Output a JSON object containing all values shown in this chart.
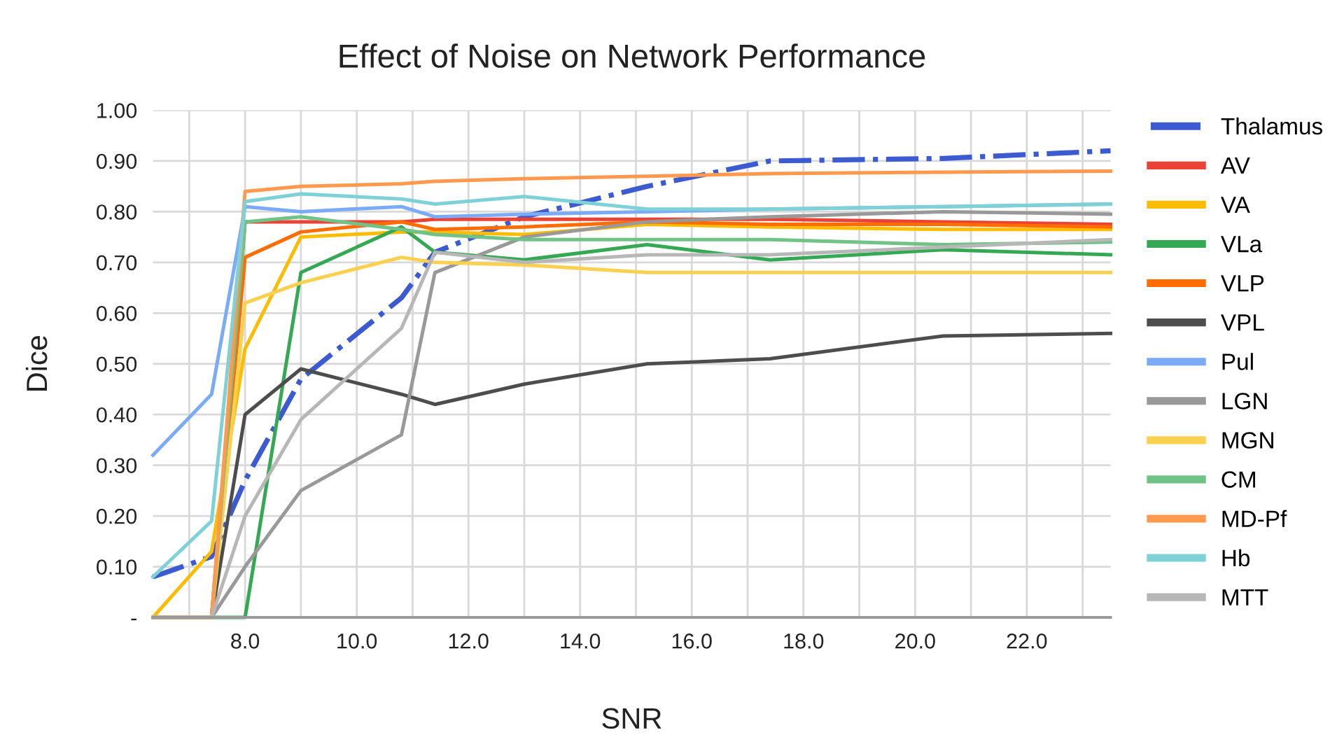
{
  "chart_data": {
    "type": "line",
    "title": "Effect of Noise on Network Performance",
    "xlabel": "SNR",
    "ylabel": "Dice",
    "x": [
      6.35,
      7.4,
      8.0,
      9.0,
      10.8,
      11.4,
      13.0,
      15.2,
      17.4,
      20.5,
      23.5
    ],
    "xlim": [
      6.35,
      23.5
    ],
    "xticks": [
      {
        "value": 7,
        "label": null
      },
      {
        "value": 8,
        "label": "8.0"
      },
      {
        "value": 9,
        "label": null
      },
      {
        "value": 10,
        "label": "10.0"
      },
      {
        "value": 11,
        "label": null
      },
      {
        "value": 12,
        "label": "12.0"
      },
      {
        "value": 13,
        "label": null
      },
      {
        "value": 14,
        "label": "14.0"
      },
      {
        "value": 15,
        "label": null
      },
      {
        "value": 16,
        "label": "16.0"
      },
      {
        "value": 17,
        "label": null
      },
      {
        "value": 18,
        "label": "18.0"
      },
      {
        "value": 19,
        "label": null
      },
      {
        "value": 20,
        "label": "20.0"
      },
      {
        "value": 21,
        "label": null
      },
      {
        "value": 22,
        "label": "22.0"
      },
      {
        "value": 23,
        "label": null
      }
    ],
    "ylim": [
      0,
      1.0
    ],
    "yticks": [
      {
        "value": 0,
        "label": "-"
      },
      {
        "value": 0.1,
        "label": "0.10"
      },
      {
        "value": 0.2,
        "label": "0.20"
      },
      {
        "value": 0.3,
        "label": "0.30"
      },
      {
        "value": 0.4,
        "label": "0.40"
      },
      {
        "value": 0.5,
        "label": "0.50"
      },
      {
        "value": 0.6,
        "label": "0.60"
      },
      {
        "value": 0.7,
        "label": "0.70"
      },
      {
        "value": 0.8,
        "label": "0.80"
      },
      {
        "value": 0.9,
        "label": "0.90"
      },
      {
        "value": 1.0,
        "label": "1.00"
      }
    ],
    "grid": true,
    "legend": "right",
    "series": [
      {
        "name": "Thalamus",
        "color": "#3c5bd0",
        "line_style": "dashdot",
        "values": [
          0.08,
          0.12,
          0.27,
          0.47,
          0.63,
          0.72,
          0.79,
          0.85,
          0.9,
          0.905,
          0.92
        ]
      },
      {
        "name": "AV",
        "color": "#ea4335",
        "values": [
          0,
          0,
          0.78,
          0.78,
          0.78,
          0.785,
          0.785,
          0.785,
          0.785,
          0.78,
          0.775
        ]
      },
      {
        "name": "VA",
        "color": "#fbbc04",
        "values": [
          0,
          0.13,
          0.53,
          0.75,
          0.76,
          0.76,
          0.755,
          0.775,
          0.77,
          0.765,
          0.765
        ]
      },
      {
        "name": "VLa",
        "color": "#34a853",
        "values": [
          0,
          0,
          0,
          0.68,
          0.77,
          0.72,
          0.705,
          0.735,
          0.705,
          0.725,
          0.715
        ]
      },
      {
        "name": "VLP",
        "color": "#ff6d01",
        "values": [
          0,
          0,
          0.71,
          0.76,
          0.78,
          0.765,
          0.77,
          0.78,
          0.775,
          0.775,
          0.77
        ]
      },
      {
        "name": "VPL",
        "color": "#4d4d4d",
        "values": [
          0,
          0,
          0.4,
          0.49,
          0.44,
          0.42,
          0.46,
          0.5,
          0.51,
          0.555,
          0.56
        ]
      },
      {
        "name": "Pul",
        "color": "#7baaf7",
        "values": [
          0.32,
          0.44,
          0.81,
          0.8,
          0.81,
          0.79,
          0.795,
          0.8,
          0.805,
          0.81,
          0.815
        ]
      },
      {
        "name": "LGN",
        "color": "#999999",
        "values": [
          0,
          0,
          0.1,
          0.25,
          0.36,
          0.68,
          0.75,
          0.78,
          0.79,
          0.8,
          0.795
        ]
      },
      {
        "name": "MGN",
        "color": "#fcd04f",
        "values": [
          0,
          0,
          0.62,
          0.66,
          0.71,
          0.7,
          0.695,
          0.68,
          0.68,
          0.68,
          0.68
        ]
      },
      {
        "name": "CM",
        "color": "#71c287",
        "values": [
          0,
          0,
          0.78,
          0.79,
          0.765,
          0.755,
          0.745,
          0.745,
          0.745,
          0.735,
          0.74
        ]
      },
      {
        "name": "MD-Pf",
        "color": "#ff994d",
        "values": [
          0,
          0,
          0.84,
          0.85,
          0.855,
          0.86,
          0.865,
          0.87,
          0.875,
          0.878,
          0.88
        ]
      },
      {
        "name": "Hb",
        "color": "#7ed1d7",
        "values": [
          0.08,
          0.19,
          0.82,
          0.835,
          0.825,
          0.815,
          0.83,
          0.805,
          0.805,
          0.81,
          0.815
        ]
      },
      {
        "name": "MTT",
        "color": "#b7b7b7",
        "values": [
          0,
          0,
          0.2,
          0.39,
          0.57,
          0.72,
          0.7,
          0.715,
          0.715,
          0.73,
          0.745
        ]
      }
    ]
  }
}
